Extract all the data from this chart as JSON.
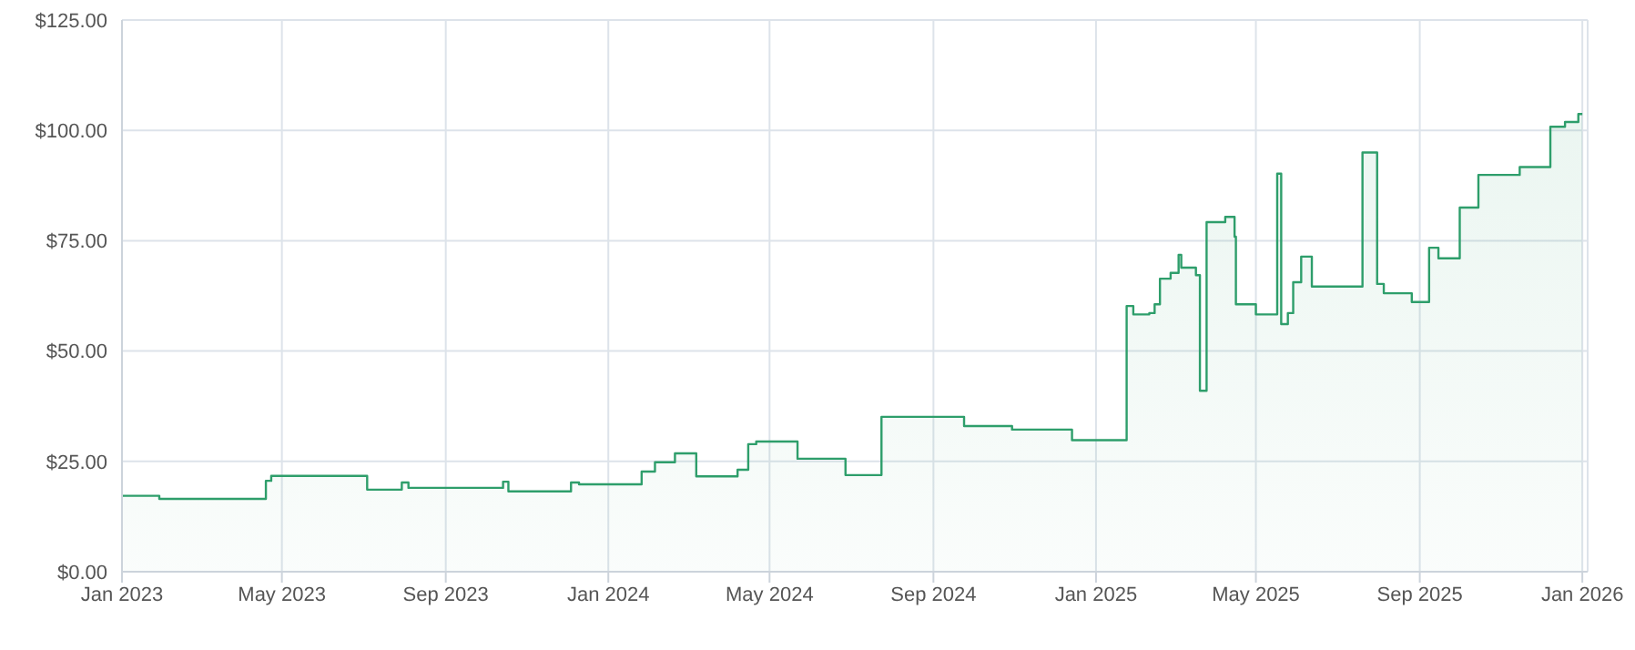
{
  "chart_data": {
    "type": "area",
    "x": [
      "2023-01-01",
      "2023-01-29",
      "2023-01-29",
      "2023-04-19",
      "2023-04-19",
      "2023-04-23",
      "2023-04-23",
      "2023-07-04",
      "2023-07-04",
      "2023-07-30",
      "2023-07-30",
      "2023-08-04",
      "2023-08-04",
      "2023-10-14",
      "2023-10-14",
      "2023-10-18",
      "2023-10-18",
      "2023-12-04",
      "2023-12-04",
      "2023-12-10",
      "2023-12-10",
      "2024-01-26",
      "2024-01-26",
      "2024-02-05",
      "2024-02-05",
      "2024-02-20",
      "2024-02-20",
      "2024-03-07",
      "2024-03-07",
      "2024-04-07",
      "2024-04-07",
      "2024-04-15",
      "2024-04-15",
      "2024-04-21",
      "2024-04-21",
      "2024-05-22",
      "2024-05-22",
      "2024-06-27",
      "2024-06-27",
      "2024-07-24",
      "2024-07-24",
      "2024-09-24",
      "2024-09-24",
      "2024-10-30",
      "2024-10-30",
      "2024-12-14",
      "2024-12-14",
      "2025-01-24",
      "2025-01-24",
      "2025-01-29",
      "2025-01-29",
      "2025-02-10",
      "2025-02-10",
      "2025-02-14",
      "2025-02-14",
      "2025-02-18",
      "2025-02-18",
      "2025-02-26",
      "2025-02-26",
      "2025-03-04",
      "2025-03-04",
      "2025-03-06",
      "2025-03-06",
      "2025-03-17",
      "2025-03-17",
      "2025-03-20",
      "2025-03-20",
      "2025-03-25",
      "2025-03-25",
      "2025-04-08",
      "2025-04-08",
      "2025-04-15",
      "2025-04-15",
      "2025-04-16",
      "2025-04-16",
      "2025-05-01",
      "2025-05-01",
      "2025-05-17",
      "2025-05-17",
      "2025-05-20",
      "2025-05-20",
      "2025-05-25",
      "2025-05-25",
      "2025-05-29",
      "2025-05-29",
      "2025-06-04",
      "2025-06-04",
      "2025-06-12",
      "2025-06-12",
      "2025-07-20",
      "2025-07-20",
      "2025-07-31",
      "2025-07-31",
      "2025-08-05",
      "2025-08-05",
      "2025-08-26",
      "2025-08-26",
      "2025-09-08",
      "2025-09-08",
      "2025-09-15",
      "2025-09-15",
      "2025-10-01",
      "2025-10-01",
      "2025-10-15",
      "2025-10-15",
      "2025-11-15",
      "2025-11-15",
      "2025-12-08",
      "2025-12-08",
      "2025-12-19",
      "2025-12-19",
      "2025-12-29",
      "2025-12-29",
      "2026-01-01"
    ],
    "series": [
      {
        "color": "#2e9e6b",
        "values": [
          17.2,
          17.2,
          16.5,
          16.5,
          20.6,
          20.6,
          21.7,
          21.7,
          18.6,
          18.6,
          20.2,
          20.2,
          19.0,
          19.0,
          20.4,
          20.4,
          18.2,
          18.2,
          20.2,
          20.2,
          19.8,
          19.8,
          22.7,
          22.7,
          24.8,
          24.8,
          26.8,
          26.8,
          21.6,
          21.6,
          23.1,
          23.1,
          28.9,
          28.9,
          29.5,
          29.5,
          25.6,
          25.6,
          21.9,
          21.9,
          35.1,
          35.1,
          33.0,
          33.0,
          32.2,
          32.2,
          29.8,
          29.8,
          60.2,
          60.2,
          58.3,
          58.3,
          58.6,
          58.6,
          60.6,
          60.6,
          66.4,
          66.4,
          67.7,
          67.7,
          71.8,
          71.8,
          68.9,
          68.9,
          67.2,
          67.2,
          41.0,
          41.0,
          79.2,
          79.2,
          80.4,
          80.4,
          75.9,
          75.9,
          60.6,
          60.6,
          58.3,
          58.3,
          90.2,
          90.2,
          56.1,
          56.1,
          58.6,
          58.6,
          65.6,
          65.6,
          71.4,
          71.4,
          64.6,
          64.6,
          95.0,
          95.0,
          65.2,
          65.2,
          63.1,
          63.1,
          61.1,
          61.1,
          73.4,
          73.4,
          71.0,
          71.0,
          82.5,
          82.5,
          89.9,
          89.9,
          91.7,
          91.7,
          100.8,
          100.8,
          101.9,
          101.9,
          103.7,
          103.7
        ]
      }
    ],
    "xlim": [
      "2023-01-01",
      "2026-01-05"
    ],
    "xticks": [
      {
        "value": "2023-01-01",
        "label": "Jan 2023"
      },
      {
        "value": "2023-05-01",
        "label": "May 2023"
      },
      {
        "value": "2023-09-01",
        "label": "Sep 2023"
      },
      {
        "value": "2024-01-01",
        "label": "Jan 2024"
      },
      {
        "value": "2024-05-01",
        "label": "May 2024"
      },
      {
        "value": "2024-09-01",
        "label": "Sep 2024"
      },
      {
        "value": "2025-01-01",
        "label": "Jan 2025"
      },
      {
        "value": "2025-05-01",
        "label": "May 2025"
      },
      {
        "value": "2025-09-01",
        "label": "Sep 2025"
      },
      {
        "value": "2026-01-01",
        "label": "Jan 2026"
      }
    ],
    "ylim": [
      0,
      125
    ],
    "yticks": [
      {
        "value": 0,
        "label": "$0.00"
      },
      {
        "value": 25,
        "label": "$25.00"
      },
      {
        "value": 50,
        "label": "$50.00"
      },
      {
        "value": 75,
        "label": "$75.00"
      },
      {
        "value": 100,
        "label": "$100.00"
      },
      {
        "value": 125,
        "label": "$125.00"
      }
    ],
    "grid": true,
    "legend": false,
    "marker": "none",
    "line_style": "solid"
  }
}
